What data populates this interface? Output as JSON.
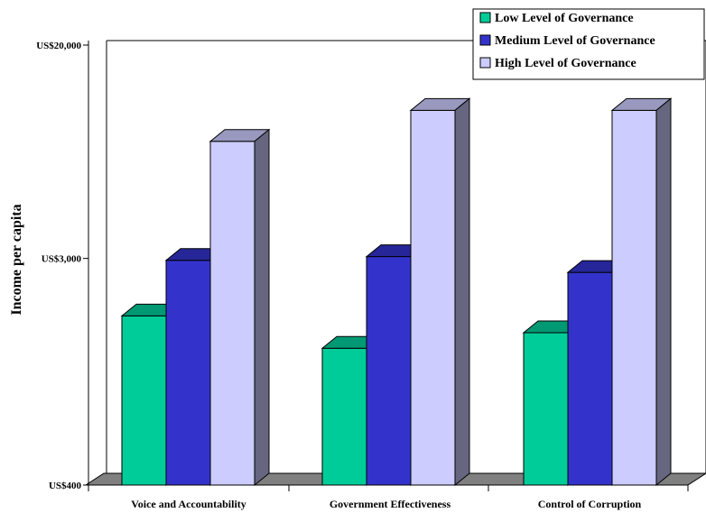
{
  "chart_data": {
    "type": "bar",
    "style": "3d-clustered",
    "title": "",
    "xlabel": "",
    "ylabel": "Income per capita",
    "y_scale": "log",
    "y_ticks": [
      {
        "value": 400,
        "label": "US$400"
      },
      {
        "value": 3000,
        "label": "US$3,000"
      },
      {
        "value": 20000,
        "label": "US$20,000"
      }
    ],
    "ylim": [
      400,
      20000
    ],
    "grid": false,
    "legend_position": "top-right",
    "categories": [
      "Voice and Accountability",
      "Government Effectiveness",
      "Control of Corruption"
    ],
    "series": [
      {
        "name": "Low Level of Governance",
        "color": "#00cc99",
        "values": [
          1800,
          1350,
          1550
        ]
      },
      {
        "name": "Medium Level of Governance",
        "color": "#3333cc",
        "values": [
          2950,
          3050,
          2650
        ]
      },
      {
        "name": "High Level of Governance",
        "color": "#ccccff",
        "values": [
          8500,
          11200,
          11200
        ]
      }
    ]
  }
}
